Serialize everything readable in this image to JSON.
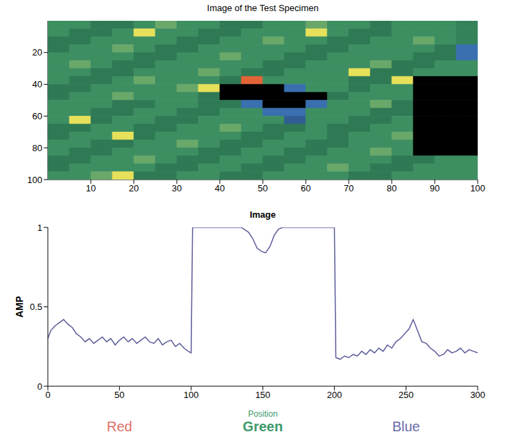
{
  "chart_data": [
    {
      "type": "heatmap",
      "title": "Image of the Test Specimen",
      "xlim": [
        0,
        100
      ],
      "ylim": [
        0,
        100
      ],
      "xticks": [
        10,
        20,
        30,
        40,
        50,
        60,
        70,
        80,
        90,
        100
      ],
      "yticks": [
        20,
        40,
        60,
        80,
        100
      ],
      "cells": [
        [
          0.5,
          0.5,
          0.42,
          0.42,
          0.5,
          0.58,
          0.5,
          0.5,
          0.42,
          0.42,
          0.5,
          0.5,
          0.58,
          0.5,
          0.5,
          0.42,
          0.5,
          0.5,
          0.5,
          0.45
        ],
        [
          0.5,
          0.42,
          0.42,
          0.5,
          0.8,
          0.5,
          0.5,
          0.42,
          0.42,
          0.5,
          0.5,
          0.5,
          0.8,
          0.5,
          0.42,
          0.42,
          0.5,
          0.5,
          0.5,
          0.45
        ],
        [
          0.42,
          0.42,
          0.5,
          0.5,
          0.5,
          0.5,
          0.42,
          0.42,
          0.5,
          0.5,
          0.58,
          0.5,
          0.5,
          0.42,
          0.42,
          0.5,
          0.5,
          0.58,
          0.5,
          0.45
        ],
        [
          0.42,
          0.5,
          0.5,
          0.58,
          0.5,
          0.42,
          0.42,
          0.5,
          0.5,
          0.5,
          0.5,
          0.5,
          0.42,
          0.42,
          0.5,
          0.5,
          0.5,
          0.5,
          0.42,
          0.3
        ],
        [
          0.5,
          0.5,
          0.5,
          0.5,
          0.42,
          0.42,
          0.5,
          0.5,
          0.58,
          0.5,
          0.5,
          0.42,
          0.42,
          0.5,
          0.5,
          0.5,
          0.5,
          0.42,
          0.42,
          0.3
        ],
        [
          0.5,
          0.58,
          0.5,
          0.42,
          0.42,
          0.5,
          0.5,
          0.5,
          0.5,
          0.5,
          0.42,
          0.42,
          0.5,
          0.5,
          0.5,
          0.58,
          0.42,
          0.42,
          0.5,
          0.5
        ],
        [
          0.5,
          0.5,
          0.42,
          0.42,
          0.5,
          0.5,
          0.5,
          0.58,
          0.5,
          0.42,
          0.42,
          0.5,
          0.5,
          0.5,
          0.8,
          0.42,
          0.42,
          0.5,
          0.5,
          0.5
        ],
        [
          0.5,
          0.42,
          0.42,
          0.5,
          0.58,
          0.5,
          0.5,
          0.5,
          0.42,
          0.95,
          0.5,
          0.5,
          0.5,
          0.5,
          0.42,
          0.42,
          0.8,
          0,
          0,
          0
        ],
        [
          0.42,
          0.42,
          0.5,
          0.5,
          0.5,
          0.5,
          0.58,
          0.8,
          0,
          0,
          0,
          0.3,
          0.5,
          0.5,
          0.42,
          0.5,
          0.5,
          0,
          0,
          0
        ],
        [
          0.42,
          0.5,
          0.5,
          0.58,
          0.5,
          0.5,
          0.5,
          0.42,
          0,
          0,
          0,
          0,
          0,
          0.42,
          0.5,
          0.5,
          0.5,
          0,
          0,
          0
        ],
        [
          0.5,
          0.5,
          0.5,
          0.42,
          0.42,
          0.5,
          0.5,
          0.42,
          0.42,
          0.3,
          0,
          0,
          0.3,
          0.5,
          0.5,
          0.58,
          0.42,
          0,
          0,
          0
        ],
        [
          0.5,
          0.5,
          0.42,
          0.42,
          0.5,
          0.5,
          0.42,
          0.42,
          0.5,
          0.5,
          0.3,
          0.3,
          0.5,
          0.5,
          0.5,
          0.42,
          0.42,
          0,
          0,
          0
        ],
        [
          0.5,
          0.8,
          0.42,
          0.5,
          0.5,
          0.42,
          0.42,
          0.5,
          0.5,
          0.5,
          0.5,
          0.25,
          0.5,
          0.5,
          0.42,
          0.42,
          0.5,
          0,
          0,
          0
        ],
        [
          0.42,
          0.42,
          0.5,
          0.5,
          0.42,
          0.42,
          0.5,
          0.5,
          0.58,
          0.5,
          0.42,
          0.42,
          0.5,
          0.42,
          0.42,
          0.5,
          0.5,
          0,
          0,
          0
        ],
        [
          0.42,
          0.5,
          0.5,
          0.8,
          0.42,
          0.5,
          0.5,
          0.5,
          0.5,
          0.42,
          0.42,
          0.5,
          0.5,
          0.42,
          0.5,
          0.5,
          0.58,
          0,
          0,
          0
        ],
        [
          0.5,
          0.5,
          0.42,
          0.42,
          0.5,
          0.5,
          0.58,
          0.5,
          0.42,
          0.42,
          0.5,
          0.5,
          0.42,
          0.42,
          0.5,
          0.5,
          0.5,
          0,
          0,
          0
        ],
        [
          0.5,
          0.42,
          0.42,
          0.5,
          0.5,
          0.5,
          0.5,
          0.42,
          0.42,
          0.5,
          0.5,
          0.42,
          0.42,
          0.5,
          0.5,
          0.58,
          0.5,
          0,
          0,
          0
        ],
        [
          0.42,
          0.42,
          0.5,
          0.5,
          0.58,
          0.5,
          0.42,
          0.42,
          0.5,
          0.5,
          0.42,
          0.42,
          0.5,
          0.5,
          0.5,
          0.5,
          0.42,
          0.42,
          0.5,
          0.5
        ],
        [
          0.42,
          0.5,
          0.5,
          0.5,
          0.5,
          0.42,
          0.42,
          0.5,
          0.5,
          0.42,
          0.42,
          0.5,
          0.5,
          0.58,
          0.5,
          0.42,
          0.42,
          0.5,
          0.5,
          0.5
        ],
        [
          0.5,
          0.5,
          0.58,
          0.8,
          0.42,
          0.42,
          0.5,
          0.5,
          0.42,
          0.42,
          0.5,
          0.5,
          0.5,
          0.5,
          0.42,
          0.42,
          0.5,
          0.5,
          0.5,
          0.5
        ]
      ]
    },
    {
      "type": "line",
      "title": "Image",
      "y_label": "AMP",
      "x_label": "Position",
      "color": "#5a5a9a",
      "xlim": [
        0,
        300
      ],
      "ylim": [
        0,
        1
      ],
      "xticks": [
        0,
        50,
        100,
        150,
        200,
        250,
        300
      ],
      "yticks": [
        0,
        0.5,
        1
      ],
      "x": [
        0,
        2,
        5,
        8,
        11,
        14,
        17,
        20,
        23,
        26,
        29,
        32,
        35,
        38,
        41,
        44,
        47,
        50,
        53,
        56,
        59,
        62,
        65,
        68,
        71,
        74,
        77,
        80,
        83,
        86,
        89,
        92,
        95,
        98,
        100,
        101,
        120,
        135,
        140,
        143,
        146,
        149,
        152,
        155,
        158,
        161,
        164,
        180,
        200,
        201,
        204,
        207,
        210,
        213,
        216,
        219,
        222,
        225,
        228,
        231,
        234,
        237,
        240,
        243,
        246,
        249,
        252,
        255,
        258,
        261,
        264,
        267,
        270,
        273,
        276,
        279,
        282,
        285,
        288,
        291,
        294,
        297,
        300
      ],
      "values": [
        0.3,
        0.35,
        0.38,
        0.4,
        0.42,
        0.39,
        0.37,
        0.33,
        0.31,
        0.28,
        0.3,
        0.27,
        0.29,
        0.31,
        0.28,
        0.3,
        0.26,
        0.29,
        0.31,
        0.28,
        0.3,
        0.27,
        0.29,
        0.31,
        0.28,
        0.27,
        0.3,
        0.26,
        0.28,
        0.29,
        0.25,
        0.27,
        0.24,
        0.22,
        0.21,
        1,
        1,
        1,
        0.97,
        0.93,
        0.87,
        0.85,
        0.84,
        0.88,
        0.95,
        0.99,
        1,
        1,
        1,
        0.18,
        0.17,
        0.19,
        0.18,
        0.2,
        0.19,
        0.22,
        0.2,
        0.23,
        0.21,
        0.24,
        0.22,
        0.26,
        0.24,
        0.28,
        0.3,
        0.33,
        0.36,
        0.42,
        0.35,
        0.28,
        0.27,
        0.24,
        0.22,
        0.19,
        0.2,
        0.23,
        0.21,
        0.22,
        0.24,
        0.21,
        0.23,
        0.22,
        0.21
      ],
      "annotations": [
        {
          "text": "Red",
          "x": 50,
          "color": "#e0706a"
        },
        {
          "text": "Green",
          "x": 150,
          "color": "#3d9a6a"
        },
        {
          "text": "Blue",
          "x": 250,
          "color": "#6a6aaa"
        }
      ]
    }
  ]
}
